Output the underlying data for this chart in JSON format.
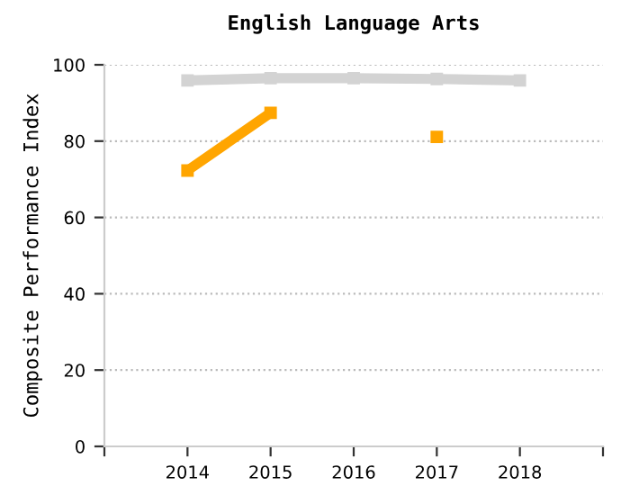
{
  "chart_data": {
    "type": "line",
    "title": "English Language Arts",
    "ylabel": "Composite Performance Index",
    "x": [
      2014,
      2015,
      2016,
      2017,
      2018
    ],
    "series": [
      {
        "color": "#d3d3d3",
        "values": [
          95.9,
          96.5,
          96.5,
          96.3,
          95.9
        ]
      },
      {
        "color": "#ffa500",
        "values": [
          72.3,
          87.4,
          null,
          81.1,
          null
        ]
      }
    ],
    "xlim": [
      2013,
      2019
    ],
    "xticks": [
      {
        "value": 2013,
        "label": null
      },
      2014,
      2015,
      2016,
      2017,
      2018,
      {
        "value": 2019,
        "label": null
      }
    ],
    "ylim": [
      0,
      100
    ],
    "yticks": [
      0,
      20,
      40,
      60,
      80,
      100
    ],
    "grid": "y",
    "marker": "square",
    "line_style": "solid"
  }
}
